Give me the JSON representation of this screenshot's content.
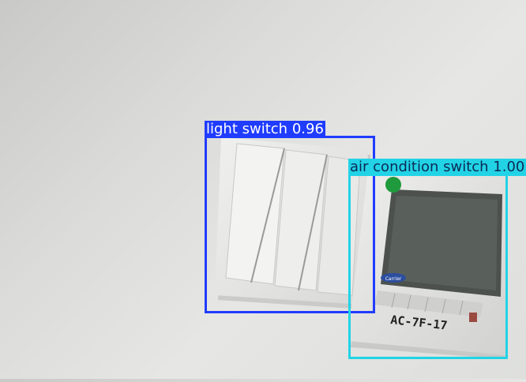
{
  "detections": [
    {
      "label": "light switch",
      "score": "0.96",
      "color": "#1f3cff"
    },
    {
      "label": "air condition switch",
      "score": "1.00",
      "color": "#22d3e6"
    }
  ],
  "thermostat": {
    "brand_badge": "Carrier",
    "label": "AC-7F-17",
    "indicator_color": "#1f9a3c"
  }
}
